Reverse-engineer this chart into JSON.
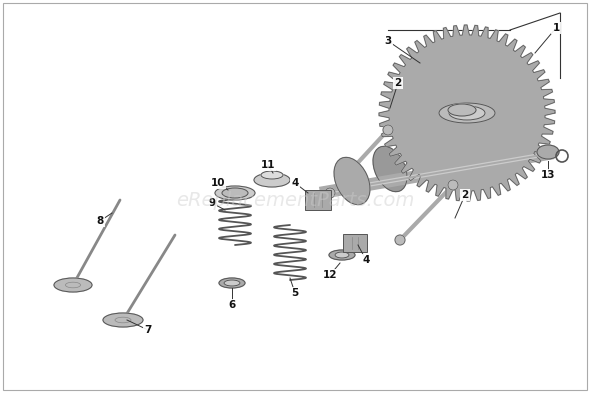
{
  "bg_color": "#ffffff",
  "watermark": "eReplacementParts.com",
  "watermark_color": "#cccccc",
  "watermark_fontsize": 14,
  "watermark_alpha": 0.45,
  "fig_width": 5.9,
  "fig_height": 3.93,
  "dpi": 100,
  "border_color": "#aaaaaa",
  "label_fontsize": 7.5
}
